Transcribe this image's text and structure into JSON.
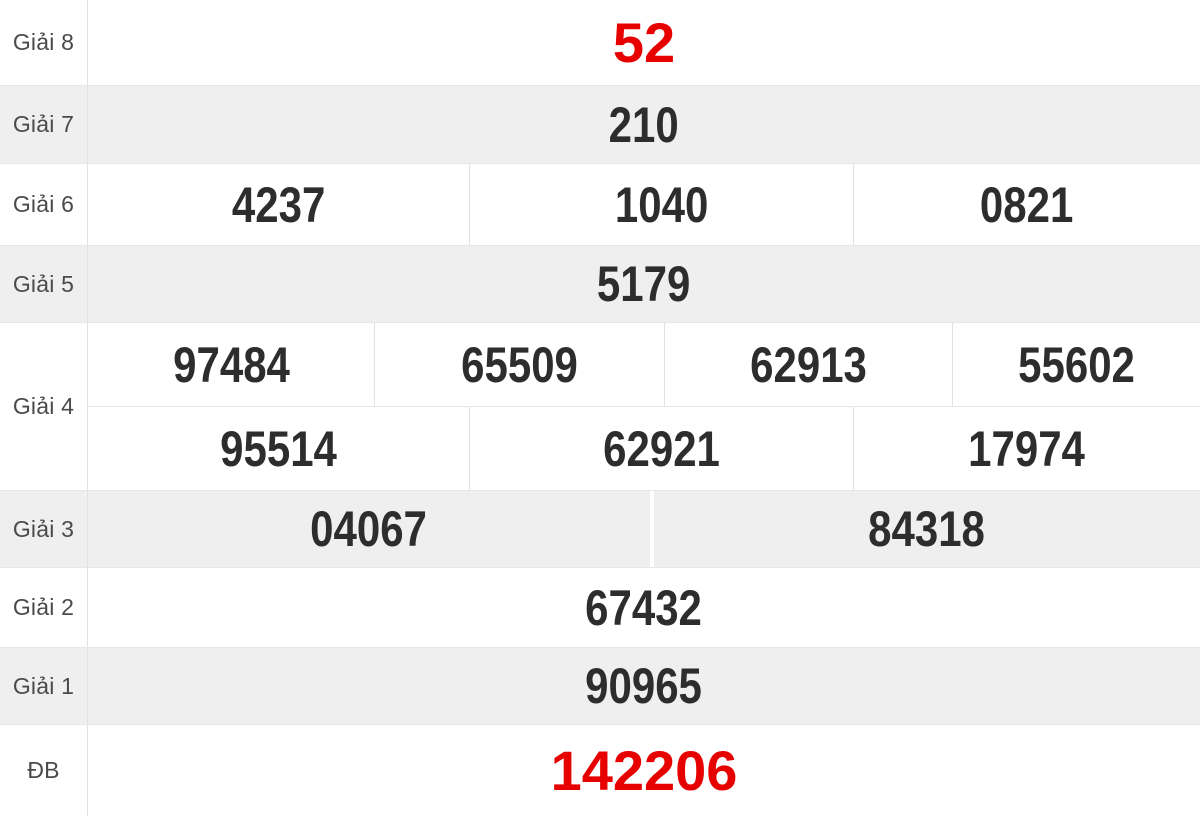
{
  "colors": {
    "highlight_red": "#e60000",
    "number_dark": "#2d2d2d",
    "label_gray": "#4a4a4a",
    "row_alt_bg": "#efefef"
  },
  "results_table": {
    "rows": [
      {
        "id": "giai-8",
        "label": "Giải 8",
        "highlight": true,
        "lines": [
          [
            "52"
          ]
        ]
      },
      {
        "id": "giai-7",
        "label": "Giải 7",
        "highlight": false,
        "lines": [
          [
            "210"
          ]
        ]
      },
      {
        "id": "giai-6",
        "label": "Giải 6",
        "highlight": false,
        "lines": [
          [
            "4237",
            "1040",
            "0821"
          ]
        ]
      },
      {
        "id": "giai-5",
        "label": "Giải 5",
        "highlight": false,
        "lines": [
          [
            "5179"
          ]
        ]
      },
      {
        "id": "giai-4",
        "label": "Giải 4",
        "highlight": false,
        "lines": [
          [
            "97484",
            "65509",
            "62913",
            "55602"
          ],
          [
            "95514",
            "62921",
            "17974"
          ]
        ]
      },
      {
        "id": "giai-3",
        "label": "Giải 3",
        "highlight": false,
        "lines": [
          [
            "04067",
            "84318"
          ]
        ]
      },
      {
        "id": "giai-2",
        "label": "Giải 2",
        "highlight": false,
        "lines": [
          [
            "67432"
          ]
        ]
      },
      {
        "id": "giai-1",
        "label": "Giải 1",
        "highlight": false,
        "lines": [
          [
            "90965"
          ]
        ]
      },
      {
        "id": "db",
        "label": "ĐB",
        "highlight": true,
        "lines": [
          [
            "142206"
          ]
        ]
      }
    ]
  }
}
